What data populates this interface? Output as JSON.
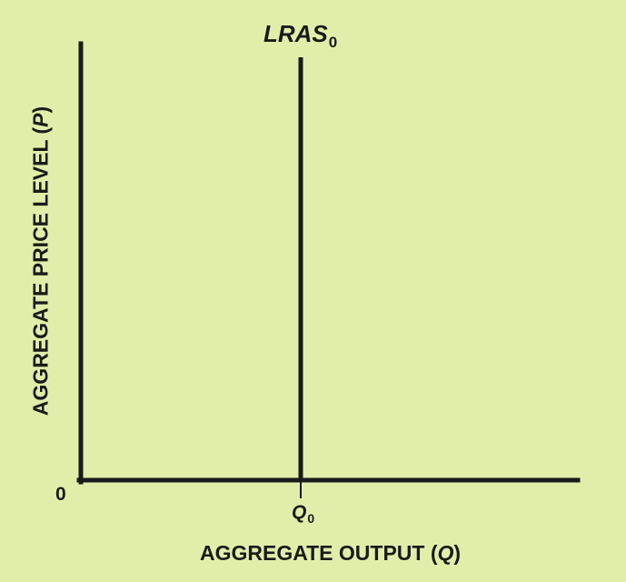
{
  "diagram": {
    "curve": {
      "name": "LRAS",
      "subscript": "0"
    },
    "x_axis": {
      "label_text": "AGGREGATE OUTPUT (",
      "label_var": "Q",
      "label_close": ")"
    },
    "y_axis": {
      "label_text": "AGGREGATE PRICE LEVEL (",
      "label_var": "P",
      "label_close": ")"
    },
    "origin": "0",
    "x_tick": {
      "name": "Q",
      "subscript": "0"
    },
    "colors": {
      "background": "#e1eeaa",
      "lines": "#1a1a1a"
    }
  }
}
